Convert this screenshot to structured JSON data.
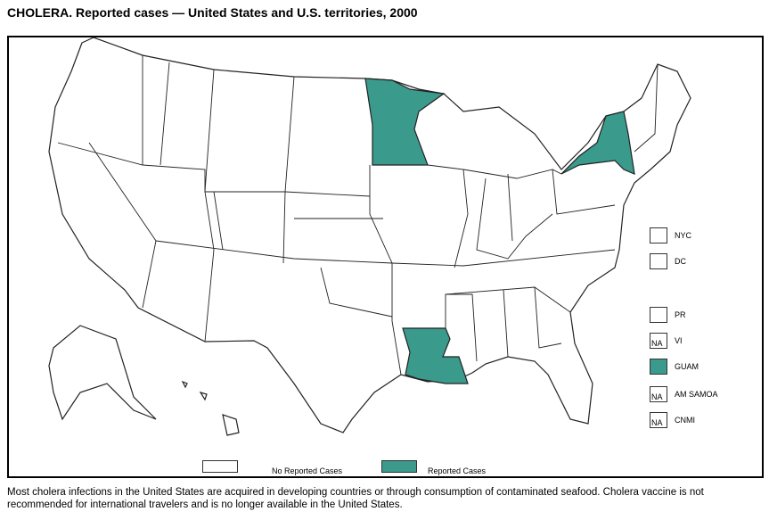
{
  "title": "CHOLERA. Reported cases — United States and U.S. territories, 2000",
  "colors": {
    "reported": "#3a9a8c",
    "none": "#ffffff"
  },
  "map": {
    "regions": {
      "minnesota": "reported",
      "new_york": "reported",
      "louisiana": "reported",
      "other_states": "none",
      "alaska": "none",
      "hawaii": "none"
    }
  },
  "territories": [
    {
      "label": "NYC",
      "box": "",
      "status": "none"
    },
    {
      "label": "DC",
      "box": "",
      "status": "none"
    },
    {
      "label": "PR",
      "box": "",
      "status": "none"
    },
    {
      "label": "VI",
      "box": "NA",
      "status": "na"
    },
    {
      "label": "GUAM",
      "box": "",
      "status": "reported"
    },
    {
      "label": "AM SAMOA",
      "box": "NA",
      "status": "na"
    },
    {
      "label": "CNMI",
      "box": "NA",
      "status": "na"
    }
  ],
  "legend": {
    "none": "No Reported Cases",
    "reported": "Reported Cases"
  },
  "footnote": "Most cholera infections in the United States are acquired in developing countries or through consumption of contaminated seafood. Cholera vaccine is not recommended for international travelers and is no longer available in the United States."
}
